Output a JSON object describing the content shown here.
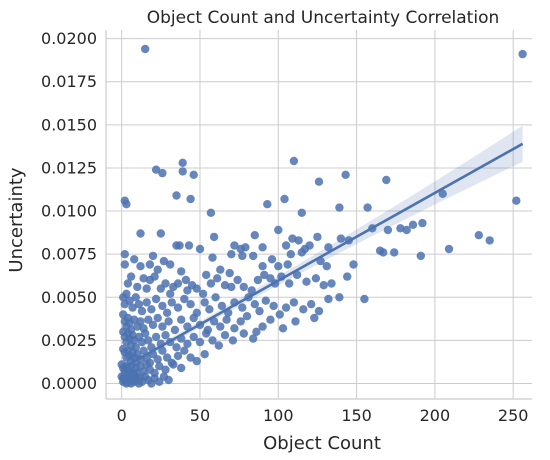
{
  "chart_data": {
    "type": "scatter",
    "title": "Object Count and Uncertainty Correlation",
    "xlabel": "Object Count",
    "ylabel": "Uncertainty",
    "xlim": [
      -10,
      262
    ],
    "ylim": [
      -0.0009,
      0.0205
    ],
    "x_ticks": [
      0,
      50,
      100,
      150,
      200,
      250
    ],
    "x_tick_labels": [
      "0",
      "50",
      "100",
      "150",
      "200",
      "250"
    ],
    "y_ticks": [
      0.0,
      0.0025,
      0.005,
      0.0075,
      0.01,
      0.0125,
      0.015,
      0.0175,
      0.02
    ],
    "y_tick_labels": [
      "0.0000",
      "0.0025",
      "0.0050",
      "0.0075",
      "0.0100",
      "0.0125",
      "0.0150",
      "0.0175",
      "0.0200"
    ],
    "grid": true,
    "color": "#4c72b0",
    "regression": {
      "x": [
        0,
        256
      ],
      "y": [
        0.00088,
        0.0139
      ],
      "ci_lower": [
        0.0004,
        0.0128
      ],
      "ci_upper": [
        0.0013,
        0.0149
      ],
      "ci_mid": [
        0.00085,
        0.0138
      ]
    },
    "points": [
      [
        15,
        0.0194
      ],
      [
        256,
        0.0191
      ],
      [
        22,
        0.0124
      ],
      [
        26,
        0.0122
      ],
      [
        39,
        0.0128
      ],
      [
        39,
        0.0123
      ],
      [
        46,
        0.0121
      ],
      [
        110,
        0.0129
      ],
      [
        143,
        0.0121
      ],
      [
        169,
        0.0118
      ],
      [
        126,
        0.0117
      ],
      [
        35,
        0.0109
      ],
      [
        44,
        0.0107
      ],
      [
        57,
        0.0099
      ],
      [
        93,
        0.0104
      ],
      [
        104,
        0.0107
      ],
      [
        115,
        0.0099
      ],
      [
        139,
        0.0102
      ],
      [
        157,
        0.0102
      ],
      [
        205,
        0.011
      ],
      [
        252,
        0.0106
      ],
      [
        2,
        0.0106
      ],
      [
        3,
        0.0104
      ],
      [
        12,
        0.0087
      ],
      [
        25,
        0.0087
      ],
      [
        85,
        0.0086
      ],
      [
        100,
        0.0089
      ],
      [
        109,
        0.0084
      ],
      [
        113,
        0.0083
      ],
      [
        125,
        0.0085
      ],
      [
        140,
        0.0084
      ],
      [
        145,
        0.0083
      ],
      [
        160,
        0.009
      ],
      [
        170,
        0.0089
      ],
      [
        178,
        0.009
      ],
      [
        182,
        0.0089
      ],
      [
        186,
        0.0092
      ],
      [
        192,
        0.0093
      ],
      [
        228,
        0.0086
      ],
      [
        235,
        0.0083
      ],
      [
        35,
        0.008
      ],
      [
        37,
        0.008
      ],
      [
        43,
        0.008
      ],
      [
        50,
        0.0078
      ],
      [
        59,
        0.0085
      ],
      [
        72,
        0.008
      ],
      [
        79,
        0.0079
      ],
      [
        90,
        0.0079
      ],
      [
        105,
        0.008
      ],
      [
        117,
        0.0078
      ],
      [
        120,
        0.008
      ],
      [
        132,
        0.0079
      ],
      [
        165,
        0.0077
      ],
      [
        174,
        0.0076
      ],
      [
        191,
        0.0074
      ],
      [
        209,
        0.0078
      ],
      [
        2,
        0.0075
      ],
      [
        2,
        0.0069
      ],
      [
        8,
        0.0072
      ],
      [
        12,
        0.0068
      ],
      [
        18,
        0.0069
      ],
      [
        20,
        0.0074
      ],
      [
        23,
        0.0066
      ],
      [
        27,
        0.0071
      ],
      [
        31,
        0.0069
      ],
      [
        38,
        0.0065
      ],
      [
        41,
        0.006
      ],
      [
        54,
        0.0063
      ],
      [
        58,
        0.0073
      ],
      [
        63,
        0.0066
      ],
      [
        69,
        0.0064
      ],
      [
        70,
        0.0075
      ],
      [
        76,
        0.0078
      ],
      [
        77,
        0.0074
      ],
      [
        84,
        0.0074
      ],
      [
        90,
        0.0068
      ],
      [
        96,
        0.0072
      ],
      [
        100,
        0.0068
      ],
      [
        106,
        0.0069
      ],
      [
        108,
        0.0075
      ],
      [
        115,
        0.0076
      ],
      [
        127,
        0.0071
      ],
      [
        131,
        0.0068
      ],
      [
        148,
        0.0069
      ],
      [
        167,
        0.0076
      ],
      [
        4,
        0.0058
      ],
      [
        6,
        0.0062
      ],
      [
        10,
        0.0056
      ],
      [
        14,
        0.0061
      ],
      [
        16,
        0.0055
      ],
      [
        18,
        0.006
      ],
      [
        21,
        0.0062
      ],
      [
        25,
        0.0055
      ],
      [
        28,
        0.0058
      ],
      [
        31,
        0.0052
      ],
      [
        33,
        0.0056
      ],
      [
        36,
        0.0058
      ],
      [
        42,
        0.0054
      ],
      [
        45,
        0.0057
      ],
      [
        48,
        0.0055
      ],
      [
        52,
        0.0052
      ],
      [
        57,
        0.0058
      ],
      [
        61,
        0.0061
      ],
      [
        66,
        0.0057
      ],
      [
        70,
        0.0056
      ],
      [
        74,
        0.006
      ],
      [
        78,
        0.0056
      ],
      [
        83,
        0.0054
      ],
      [
        87,
        0.006
      ],
      [
        91,
        0.0063
      ],
      [
        95,
        0.0061
      ],
      [
        98,
        0.0058
      ],
      [
        102,
        0.0062
      ],
      [
        107,
        0.0058
      ],
      [
        112,
        0.0063
      ],
      [
        118,
        0.0059
      ],
      [
        124,
        0.0061
      ],
      [
        129,
        0.0057
      ],
      [
        134,
        0.0058
      ],
      [
        144,
        0.0062
      ],
      [
        155,
        0.0049
      ],
      [
        139,
        0.005
      ],
      [
        1,
        0.005
      ],
      [
        2,
        0.0046
      ],
      [
        3,
        0.0052
      ],
      [
        5,
        0.0048
      ],
      [
        7,
        0.0044
      ],
      [
        9,
        0.005
      ],
      [
        11,
        0.0046
      ],
      [
        13,
        0.0042
      ],
      [
        16,
        0.0047
      ],
      [
        19,
        0.0043
      ],
      [
        22,
        0.0049
      ],
      [
        26,
        0.0045
      ],
      [
        29,
        0.0041
      ],
      [
        32,
        0.0047
      ],
      [
        36,
        0.0044
      ],
      [
        40,
        0.0049
      ],
      [
        44,
        0.0046
      ],
      [
        48,
        0.0041
      ],
      [
        53,
        0.0047
      ],
      [
        56,
        0.0043
      ],
      [
        60,
        0.005
      ],
      [
        64,
        0.0045
      ],
      [
        68,
        0.0041
      ],
      [
        72,
        0.0047
      ],
      [
        77,
        0.0044
      ],
      [
        81,
        0.005
      ],
      [
        85,
        0.0046
      ],
      [
        88,
        0.0042
      ],
      [
        92,
        0.0048
      ],
      [
        97,
        0.0045
      ],
      [
        101,
        0.004
      ],
      [
        105,
        0.0044
      ],
      [
        110,
        0.0047
      ],
      [
        116,
        0.0043
      ],
      [
        121,
        0.0046
      ],
      [
        126,
        0.0042
      ],
      [
        132,
        0.0049
      ],
      [
        1,
        0.004
      ],
      [
        2,
        0.0036
      ],
      [
        3,
        0.0033
      ],
      [
        4,
        0.0038
      ],
      [
        5,
        0.0035
      ],
      [
        6,
        0.0031
      ],
      [
        8,
        0.0037
      ],
      [
        10,
        0.0033
      ],
      [
        12,
        0.0036
      ],
      [
        14,
        0.0032
      ],
      [
        17,
        0.0037
      ],
      [
        20,
        0.0034
      ],
      [
        23,
        0.0038
      ],
      [
        26,
        0.0033
      ],
      [
        30,
        0.0036
      ],
      [
        34,
        0.0031
      ],
      [
        38,
        0.0037
      ],
      [
        42,
        0.0033
      ],
      [
        46,
        0.0038
      ],
      [
        50,
        0.0034
      ],
      [
        55,
        0.0031
      ],
      [
        59,
        0.0036
      ],
      [
        63,
        0.0033
      ],
      [
        67,
        0.0037
      ],
      [
        72,
        0.0032
      ],
      [
        76,
        0.0036
      ],
      [
        80,
        0.0039
      ],
      [
        86,
        0.003
      ],
      [
        90,
        0.0033
      ],
      [
        95,
        0.0037
      ],
      [
        103,
        0.0032
      ],
      [
        111,
        0.0036
      ],
      [
        123,
        0.0038
      ],
      [
        1,
        0.003
      ],
      [
        2,
        0.0027
      ],
      [
        3,
        0.0024
      ],
      [
        4,
        0.0029
      ],
      [
        5,
        0.0026
      ],
      [
        6,
        0.0022
      ],
      [
        7,
        0.0028
      ],
      [
        8,
        0.0025
      ],
      [
        9,
        0.0021
      ],
      [
        11,
        0.0027
      ],
      [
        13,
        0.0024
      ],
      [
        15,
        0.0029
      ],
      [
        17,
        0.0025
      ],
      [
        19,
        0.0021
      ],
      [
        22,
        0.0027
      ],
      [
        25,
        0.0023
      ],
      [
        28,
        0.0028
      ],
      [
        31,
        0.0024
      ],
      [
        35,
        0.0021
      ],
      [
        38,
        0.0026
      ],
      [
        42,
        0.0023
      ],
      [
        46,
        0.0027
      ],
      [
        50,
        0.0024
      ],
      [
        54,
        0.0029
      ],
      [
        58,
        0.0025
      ],
      [
        62,
        0.0022
      ],
      [
        66,
        0.0028
      ],
      [
        71,
        0.0025
      ],
      [
        78,
        0.0029
      ],
      [
        84,
        0.0026
      ],
      [
        1,
        0.002
      ],
      [
        2,
        0.0018
      ],
      [
        3,
        0.0015
      ],
      [
        4,
        0.0019
      ],
      [
        5,
        0.0016
      ],
      [
        6,
        0.0013
      ],
      [
        7,
        0.0018
      ],
      [
        8,
        0.0015
      ],
      [
        9,
        0.0012
      ],
      [
        10,
        0.0017
      ],
      [
        12,
        0.0014
      ],
      [
        14,
        0.0019
      ],
      [
        16,
        0.0015
      ],
      [
        18,
        0.0012
      ],
      [
        20,
        0.0017
      ],
      [
        23,
        0.0014
      ],
      [
        26,
        0.0019
      ],
      [
        29,
        0.0015
      ],
      [
        32,
        0.0012
      ],
      [
        36,
        0.0016
      ],
      [
        40,
        0.0019
      ],
      [
        44,
        0.0015
      ],
      [
        48,
        0.0013
      ],
      [
        53,
        0.0017
      ],
      [
        0,
        0.0011
      ],
      [
        1,
        0.0009
      ],
      [
        2,
        0.0007
      ],
      [
        3,
        0.001
      ],
      [
        4,
        0.0008
      ],
      [
        5,
        0.0006
      ],
      [
        6,
        0.001
      ],
      [
        7,
        0.0007
      ],
      [
        8,
        0.0005
      ],
      [
        9,
        0.0009
      ],
      [
        10,
        0.0006
      ],
      [
        12,
        0.001
      ],
      [
        14,
        0.0007
      ],
      [
        16,
        0.0011
      ],
      [
        18,
        0.0008
      ],
      [
        21,
        0.0006
      ],
      [
        24,
        0.001
      ],
      [
        28,
        0.0008
      ],
      [
        33,
        0.0011
      ],
      [
        38,
        0.0009
      ],
      [
        0,
        0.0004
      ],
      [
        1,
        0.0003
      ],
      [
        1,
        0.0001
      ],
      [
        2,
        0.0004
      ],
      [
        2,
        0.0002
      ],
      [
        3,
        0.0
      ],
      [
        3,
        0.0003
      ],
      [
        4,
        0.0001
      ],
      [
        5,
        0.0004
      ],
      [
        5,
        0.0002
      ],
      [
        6,
        0.0
      ],
      [
        7,
        0.0003
      ],
      [
        8,
        0.0001
      ],
      [
        9,
        0.0004
      ],
      [
        10,
        0.0002
      ],
      [
        11,
        0.0
      ],
      [
        12,
        0.0003
      ],
      [
        13,
        0.0001
      ],
      [
        15,
        0.0004
      ],
      [
        17,
        0.0002
      ],
      [
        19,
        0.0
      ],
      [
        21,
        0.0003
      ],
      [
        24,
        0.0001
      ],
      [
        27,
        0.0004
      ],
      [
        30,
        0.0002
      ]
    ]
  }
}
